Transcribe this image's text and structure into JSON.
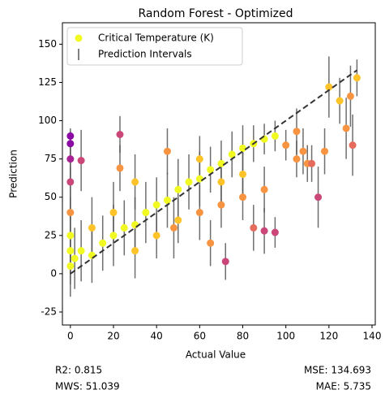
{
  "chart_data": {
    "type": "scatter",
    "title": "Random Forest - Optimized",
    "x_label": "Actual Value",
    "y_label": "Prediction",
    "xlim": [
      -3.7,
      141.5
    ],
    "ylim": [
      -33.5,
      164
    ],
    "xticks": [
      0,
      20,
      40,
      60,
      80,
      100,
      120,
      140
    ],
    "yticks": [
      -25,
      0,
      25,
      50,
      75,
      100,
      125,
      150
    ],
    "legend": "upper left",
    "series": [
      {
        "name": "Critical Temperature (K)",
        "color": "#f0f921",
        "x": [
          0,
          0,
          0,
          0,
          0,
          0,
          0,
          0,
          2,
          5,
          10,
          10,
          15,
          20,
          25,
          30,
          35,
          40,
          45,
          50,
          55,
          60,
          65,
          70,
          75,
          80,
          85,
          90,
          95,
          20,
          30,
          40,
          50,
          60,
          70,
          80,
          90,
          45,
          60,
          70,
          80,
          85,
          90,
          95,
          72,
          100,
          105,
          110,
          112,
          115,
          118,
          120,
          125,
          128,
          130,
          131,
          133,
          23,
          23,
          5,
          105,
          108,
          48,
          65,
          30
        ],
        "values": [
          5,
          15,
          25,
          40,
          60,
          75,
          85,
          90,
          10,
          15,
          12,
          30,
          20,
          25,
          30,
          32,
          40,
          45,
          48,
          55,
          60,
          62,
          68,
          72,
          78,
          82,
          85,
          88,
          90,
          40,
          15,
          25,
          35,
          40,
          45,
          50,
          55,
          80,
          75,
          60,
          65,
          30,
          28,
          27,
          8,
          84,
          75,
          72,
          72,
          50,
          80,
          122,
          113,
          95,
          116,
          84,
          128,
          91,
          69,
          74,
          93,
          80,
          30,
          20,
          60
        ],
        "errors": [
          20,
          22,
          25,
          30,
          25,
          15,
          8,
          5,
          20,
          20,
          18,
          20,
          18,
          20,
          18,
          18,
          20,
          18,
          18,
          20,
          18,
          18,
          15,
          15,
          15,
          15,
          12,
          10,
          10,
          20,
          18,
          15,
          15,
          18,
          15,
          15,
          15,
          15,
          15,
          15,
          15,
          15,
          15,
          10,
          12,
          10,
          12,
          12,
          12,
          20,
          15,
          20,
          15,
          20,
          20,
          20,
          12,
          12,
          15,
          20,
          15,
          15,
          20,
          15,
          18
        ],
        "colors": [
          "#f0f921",
          "#f0f921",
          "#f0f921",
          "#f89441",
          "#cb4679",
          "#a82296",
          "#8b0aa5",
          "#8b0aa5",
          "#f0f921",
          "#f0f921",
          "#f0f921",
          "#fdc328",
          "#f0f921",
          "#f0f921",
          "#f0f921",
          "#f0f921",
          "#f0f921",
          "#f0f921",
          "#f0f921",
          "#f0f921",
          "#f0f921",
          "#f0f921",
          "#f0f921",
          "#f0f921",
          "#f0f921",
          "#f0f921",
          "#f0f921",
          "#f0f921",
          "#f0f921",
          "#fdc328",
          "#fdc328",
          "#fdc328",
          "#fdc328",
          "#f89441",
          "#f89441",
          "#f89441",
          "#f89441",
          "#f89441",
          "#fdc328",
          "#fdc328",
          "#fdc328",
          "#e56b5d",
          "#cb4679",
          "#cb4679",
          "#cb4679",
          "#f89441",
          "#f89441",
          "#f89441",
          "#e56b5d",
          "#cb4679",
          "#f89441",
          "#fdc328",
          "#fdc328",
          "#f89441",
          "#f89441",
          "#e56b5d",
          "#fdc328",
          "#cb4679",
          "#f89441",
          "#cb4679",
          "#f89441",
          "#f89441",
          "#f89441",
          "#f89441",
          "#fdc328"
        ]
      }
    ],
    "interval_name": "Prediction Intervals",
    "interval_color": "#555555",
    "diagonal": {
      "x": [
        0,
        133
      ],
      "y": [
        0,
        133
      ],
      "color": "#333333"
    },
    "annotations": [
      "R2: 0.815",
      "MWS: 51.039",
      "MSE: 134.693",
      "MAE: 5.735"
    ]
  }
}
